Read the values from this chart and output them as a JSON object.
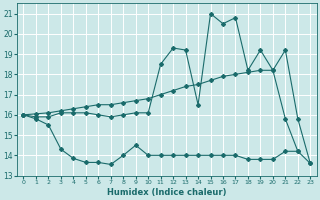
{
  "bg_color": "#cce8e8",
  "grid_color": "#b0d4d4",
  "line_color": "#1a6b6b",
  "xlabel": "Humidex (Indice chaleur)",
  "xlim": [
    -0.5,
    23.5
  ],
  "ylim": [
    13,
    21.5
  ],
  "yticks": [
    13,
    14,
    15,
    16,
    17,
    18,
    19,
    20,
    21
  ],
  "xticks": [
    0,
    1,
    2,
    3,
    4,
    5,
    6,
    7,
    8,
    9,
    10,
    11,
    12,
    13,
    14,
    15,
    16,
    17,
    18,
    19,
    20,
    21,
    22,
    23
  ],
  "line_bottom_x": [
    0,
    1,
    2,
    3,
    4,
    5,
    6,
    7,
    8,
    9,
    10,
    11,
    12,
    13,
    14,
    15,
    16,
    17,
    18,
    19,
    20,
    21,
    22,
    23
  ],
  "line_bottom_y": [
    16.0,
    15.8,
    15.5,
    14.3,
    13.85,
    13.65,
    13.65,
    13.55,
    14.0,
    14.5,
    14.0,
    14.0,
    14.0,
    14.0,
    14.0,
    14.0,
    14.0,
    14.0,
    13.8,
    13.8,
    13.8,
    14.2,
    14.2,
    13.6
  ],
  "line_jagged_x": [
    0,
    1,
    2,
    3,
    4,
    5,
    6,
    7,
    8,
    9,
    10,
    11,
    12,
    13,
    14,
    15,
    16,
    17,
    18,
    19,
    20,
    21,
    22
  ],
  "line_jagged_y": [
    16.0,
    15.9,
    15.9,
    16.1,
    16.1,
    16.1,
    16.0,
    15.9,
    16.0,
    16.1,
    16.1,
    18.5,
    19.3,
    19.2,
    16.5,
    21.0,
    20.5,
    20.8,
    18.2,
    19.2,
    18.2,
    15.8,
    14.2
  ],
  "line_smooth_x": [
    0,
    1,
    2,
    3,
    4,
    5,
    6,
    7,
    8,
    9,
    10,
    11,
    12,
    13,
    14,
    15,
    16,
    17,
    18,
    19,
    20,
    21,
    22,
    23
  ],
  "line_smooth_y": [
    16.0,
    16.05,
    16.1,
    16.2,
    16.3,
    16.4,
    16.5,
    16.5,
    16.6,
    16.7,
    16.8,
    17.0,
    17.2,
    17.4,
    17.5,
    17.7,
    17.9,
    18.0,
    18.1,
    18.2,
    18.2,
    19.2,
    15.8,
    13.6
  ]
}
